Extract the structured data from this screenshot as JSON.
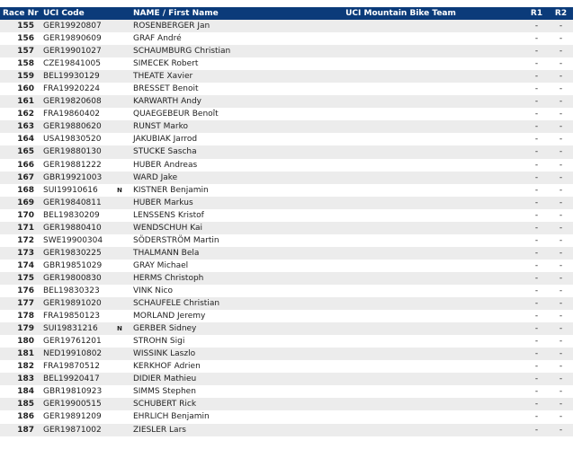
{
  "header": {
    "race_nr": "Race Nr",
    "uci_code": "UCI Code",
    "name": "NAME / First Name",
    "team": "UCI Mountain Bike Team",
    "r1": "R1",
    "r2": "R2"
  },
  "rows": [
    {
      "nr": "155",
      "code": "GER19920807",
      "flag": "",
      "name": "ROSENBERGER Jan",
      "team": "",
      "r1": "-",
      "r2": "-"
    },
    {
      "nr": "156",
      "code": "GER19890609",
      "flag": "",
      "name": "GRAF André",
      "team": "",
      "r1": "-",
      "r2": "-"
    },
    {
      "nr": "157",
      "code": "GER19901027",
      "flag": "",
      "name": "SCHAUMBURG Christian",
      "team": "",
      "r1": "-",
      "r2": "-"
    },
    {
      "nr": "158",
      "code": "CZE19841005",
      "flag": "",
      "name": "SIMECEK Robert",
      "team": "",
      "r1": "-",
      "r2": "-"
    },
    {
      "nr": "159",
      "code": "BEL19930129",
      "flag": "",
      "name": "THEATE Xavier",
      "team": "",
      "r1": "-",
      "r2": "-"
    },
    {
      "nr": "160",
      "code": "FRA19920224",
      "flag": "",
      "name": "BRESSET Benoit",
      "team": "",
      "r1": "-",
      "r2": "-"
    },
    {
      "nr": "161",
      "code": "GER19820608",
      "flag": "",
      "name": "KARWARTH Andy",
      "team": "",
      "r1": "-",
      "r2": "-"
    },
    {
      "nr": "162",
      "code": "FRA19860402",
      "flag": "",
      "name": "QUAEGEBEUR Benoît",
      "team": "",
      "r1": "-",
      "r2": "-"
    },
    {
      "nr": "163",
      "code": "GER19880620",
      "flag": "",
      "name": "RUNST Marko",
      "team": "",
      "r1": "-",
      "r2": "-"
    },
    {
      "nr": "164",
      "code": "USA19830520",
      "flag": "",
      "name": "JAKUBIAK Jarrod",
      "team": "",
      "r1": "-",
      "r2": "-"
    },
    {
      "nr": "165",
      "code": "GER19880130",
      "flag": "",
      "name": "STUCKE Sascha",
      "team": "",
      "r1": "-",
      "r2": "-"
    },
    {
      "nr": "166",
      "code": "GER19881222",
      "flag": "",
      "name": "HUBER Andreas",
      "team": "",
      "r1": "-",
      "r2": "-"
    },
    {
      "nr": "167",
      "code": "GBR19921003",
      "flag": "",
      "name": "WARD Jake",
      "team": "",
      "r1": "-",
      "r2": "-"
    },
    {
      "nr": "168",
      "code": "SUI19910616",
      "flag": "N",
      "name": "KISTNER Benjamin",
      "team": "",
      "r1": "-",
      "r2": "-"
    },
    {
      "nr": "169",
      "code": "GER19840811",
      "flag": "",
      "name": "HUBER Markus",
      "team": "",
      "r1": "-",
      "r2": "-"
    },
    {
      "nr": "170",
      "code": "BEL19830209",
      "flag": "",
      "name": "LENSSENS Kristof",
      "team": "",
      "r1": "-",
      "r2": "-"
    },
    {
      "nr": "171",
      "code": "GER19880410",
      "flag": "",
      "name": "WENDSCHUH Kai",
      "team": "",
      "r1": "-",
      "r2": "-"
    },
    {
      "nr": "172",
      "code": "SWE19900304",
      "flag": "",
      "name": "SÖDERSTRÖM Martin",
      "team": "",
      "r1": "-",
      "r2": "-"
    },
    {
      "nr": "173",
      "code": "GER19830225",
      "flag": "",
      "name": "THALMANN Bela",
      "team": "",
      "r1": "-",
      "r2": "-"
    },
    {
      "nr": "174",
      "code": "GBR19851029",
      "flag": "",
      "name": "GRAY Michael",
      "team": "",
      "r1": "-",
      "r2": "-"
    },
    {
      "nr": "175",
      "code": "GER19800830",
      "flag": "",
      "name": "HERMS Christoph",
      "team": "",
      "r1": "-",
      "r2": "-"
    },
    {
      "nr": "176",
      "code": "BEL19830323",
      "flag": "",
      "name": "VINK Nico",
      "team": "",
      "r1": "-",
      "r2": "-"
    },
    {
      "nr": "177",
      "code": "GER19891020",
      "flag": "",
      "name": "SCHAUFELE Christian",
      "team": "",
      "r1": "-",
      "r2": "-"
    },
    {
      "nr": "178",
      "code": "FRA19850123",
      "flag": "",
      "name": "MORLAND Jeremy",
      "team": "",
      "r1": "-",
      "r2": "-"
    },
    {
      "nr": "179",
      "code": "SUI19831216",
      "flag": "N",
      "name": "GERBER Sidney",
      "team": "",
      "r1": "-",
      "r2": "-"
    },
    {
      "nr": "180",
      "code": "GER19761201",
      "flag": "",
      "name": "STROHN Sigi",
      "team": "",
      "r1": "-",
      "r2": "-"
    },
    {
      "nr": "181",
      "code": "NED19910802",
      "flag": "",
      "name": "WISSINK Laszlo",
      "team": "",
      "r1": "-",
      "r2": "-"
    },
    {
      "nr": "182",
      "code": "FRA19870512",
      "flag": "",
      "name": "KERKHOF Adrien",
      "team": "",
      "r1": "-",
      "r2": "-"
    },
    {
      "nr": "183",
      "code": "BEL19920417",
      "flag": "",
      "name": "DIDIER Mathieu",
      "team": "",
      "r1": "-",
      "r2": "-"
    },
    {
      "nr": "184",
      "code": "GBR19810923",
      "flag": "",
      "name": "SIMMS Stephen",
      "team": "",
      "r1": "-",
      "r2": "-"
    },
    {
      "nr": "185",
      "code": "GER19900515",
      "flag": "",
      "name": "SCHUBERT Rick",
      "team": "",
      "r1": "-",
      "r2": "-"
    },
    {
      "nr": "186",
      "code": "GER19891209",
      "flag": "",
      "name": "EHRLICH Benjamin",
      "team": "",
      "r1": "-",
      "r2": "-"
    },
    {
      "nr": "187",
      "code": "GER19871002",
      "flag": "",
      "name": "ZIESLER Lars",
      "team": "",
      "r1": "-",
      "r2": "-"
    }
  ]
}
